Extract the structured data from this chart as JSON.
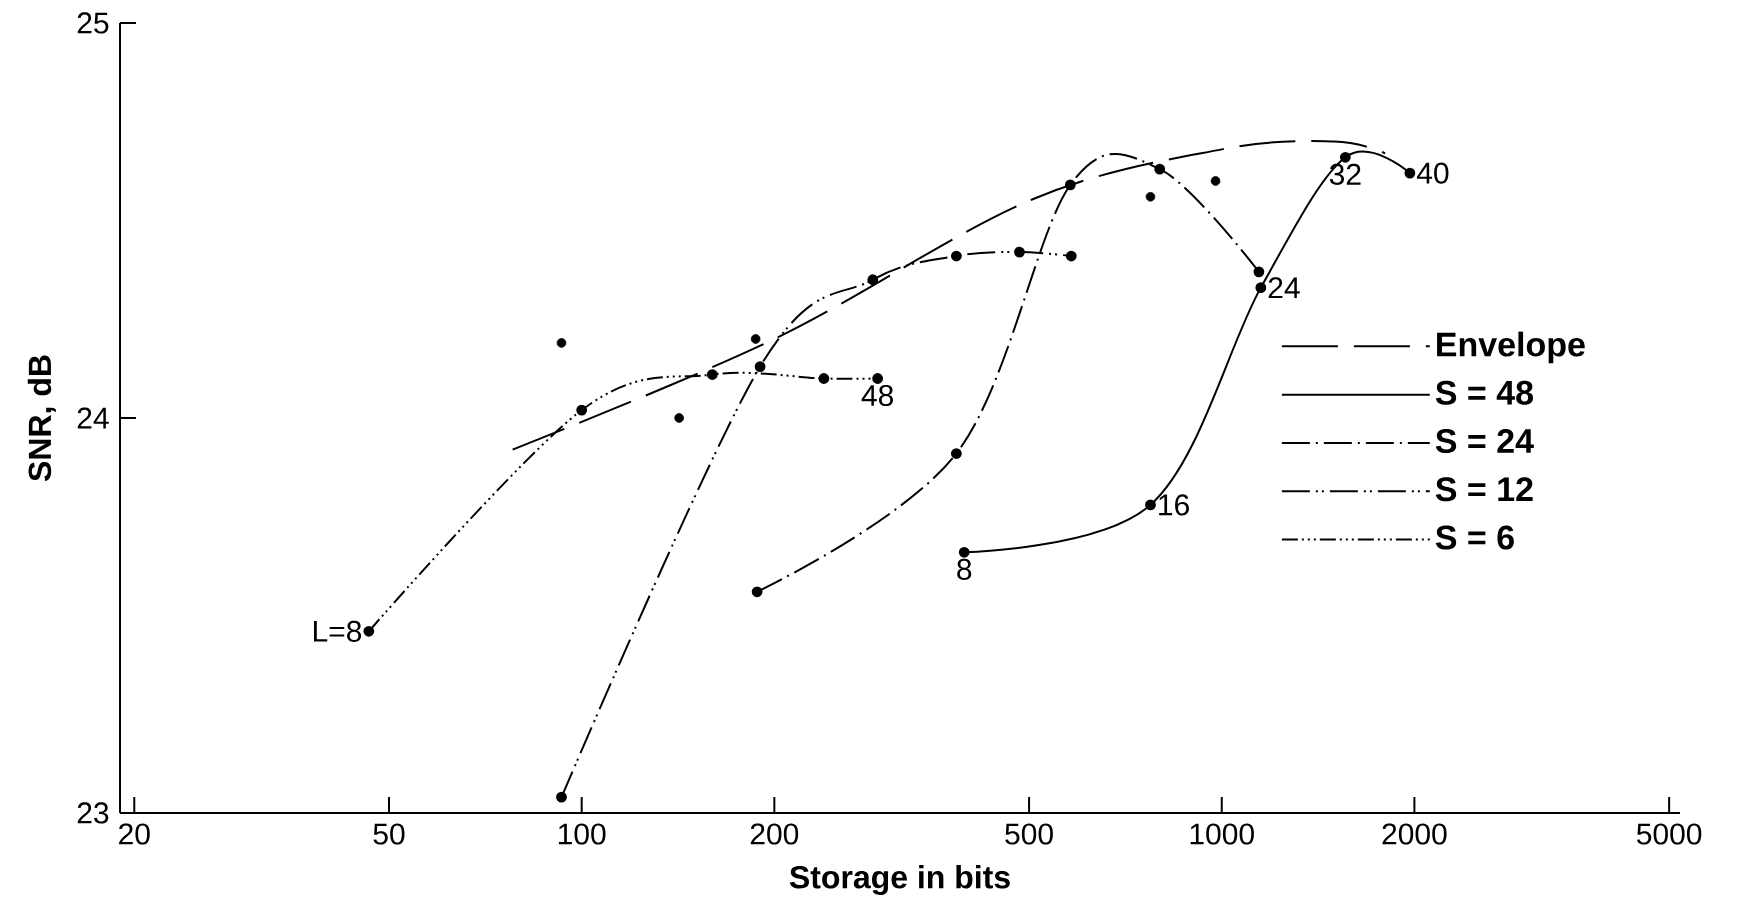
{
  "chart_data": {
    "type": "line",
    "xlabel": "Storage  in  bits",
    "ylabel": "SNR, dB",
    "log": "x",
    "xlim": [
      19,
      5200
    ],
    "ylim": [
      23,
      25
    ],
    "xticks": [
      20,
      50,
      100,
      200,
      500,
      1000,
      2000,
      5000
    ],
    "yticks": [
      23,
      24,
      25
    ],
    "grid": false,
    "legend": "right",
    "series": [
      {
        "name": "Envelope",
        "color": "#000000",
        "line_style": "dashed",
        "marker": "none",
        "x": [
          78,
          200,
          500,
          1000,
          1500,
          1800
        ],
        "values": [
          23.92,
          24.2,
          24.55,
          24.68,
          24.7,
          24.67
        ]
      },
      {
        "name": "S = 48",
        "color": "#000000",
        "line_style": "solid",
        "marker": "circle",
        "x": [
          396,
          774,
          1151,
          1560,
          1968
        ],
        "values": [
          23.66,
          23.78,
          24.33,
          24.66,
          24.62
        ]
      },
      {
        "name": "S = 24",
        "color": "#000000",
        "line_style": "dashdot",
        "marker": "circle",
        "x": [
          188,
          385,
          580,
          800,
          1143
        ],
        "values": [
          23.56,
          23.91,
          24.59,
          24.63,
          24.37
        ]
      },
      {
        "name": "S = 12",
        "color": "#000000",
        "line_style": "dashdotdot",
        "marker": "circle",
        "x": [
          93,
          190,
          285,
          385,
          483,
          582
        ],
        "values": [
          23.04,
          24.13,
          24.35,
          24.41,
          24.42,
          24.41
        ]
      },
      {
        "name": "S =  6",
        "color": "#000000",
        "line_style": "dashdotdotdot",
        "marker": "circle",
        "x": [
          46.5,
          100,
          160,
          239,
          290
        ],
        "values": [
          23.46,
          24.02,
          24.11,
          24.1,
          24.1
        ]
      },
      {
        "type": "scatter",
        "color": "#000000",
        "marker": "circle",
        "x": [
          93,
          142,
          187,
          774,
          978
        ],
        "values": [
          24.19,
          24.0,
          24.2,
          24.56,
          24.6
        ]
      }
    ],
    "annotations": [
      {
        "text": "L=8",
        "x": 46.5,
        "y": 23.46
      },
      {
        "text": "48",
        "x": 290,
        "y": 24.1
      },
      {
        "text": "8",
        "x": 396,
        "y": 23.66
      },
      {
        "text": "16",
        "x": 774,
        "y": 23.78
      },
      {
        "text": "24",
        "x": 1151,
        "y": 24.33
      },
      {
        "text": "32",
        "x": 1560,
        "y": 24.66
      },
      {
        "text": "40",
        "x": 1968,
        "y": 24.62
      }
    ]
  }
}
